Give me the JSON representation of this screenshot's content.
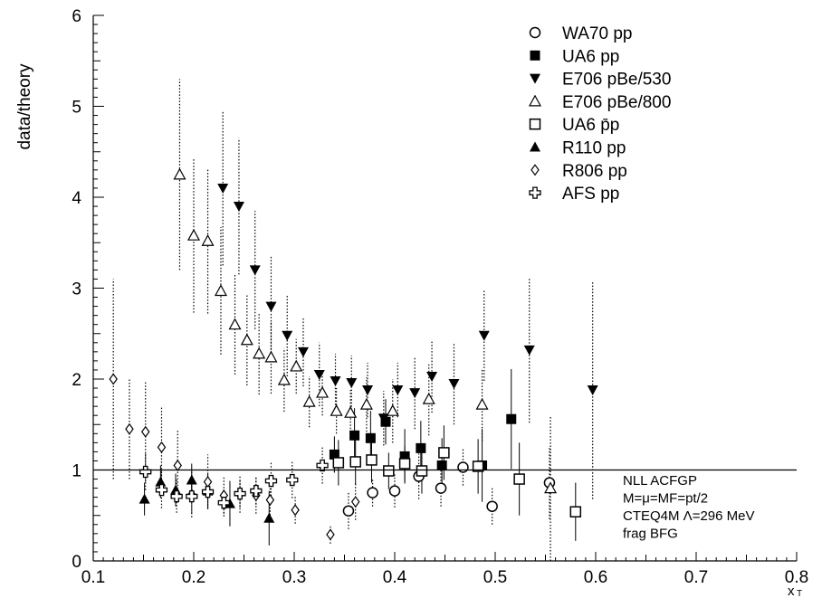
{
  "chart_data": {
    "type": "scatter",
    "ylabel": "data/theory",
    "xlabel": "x",
    "xlabel_subscript": "T",
    "xlim": [
      0.1,
      0.8
    ],
    "ylim": [
      0,
      6
    ],
    "x_ticks": [
      "0.1",
      "0.2",
      "0.3",
      "0.4",
      "0.5",
      "0.6",
      "0.7",
      "0.8"
    ],
    "y_ticks": [
      "0",
      "1",
      "2",
      "3",
      "4",
      "5",
      "6"
    ],
    "reference_line": 1,
    "grid": false,
    "legend_position": "top-right",
    "annotation": [
      "NLL ACFGP",
      "M=μ=MF=pt/2",
      "CTEQ4M Λ=296 MeV",
      "frag  BFG"
    ],
    "series": [
      {
        "name": "WA70 pp",
        "marker": "circle-open",
        "err_style": "dotted",
        "points": [
          [
            0.354,
            0.55,
            0.2
          ],
          [
            0.378,
            0.75,
            0.15
          ],
          [
            0.4,
            0.77,
            0.18
          ],
          [
            0.424,
            0.93,
            0.25
          ],
          [
            0.446,
            0.8,
            0.2
          ],
          [
            0.468,
            1.03,
            0.2
          ],
          [
            0.497,
            0.6,
            0.2
          ],
          [
            0.554,
            0.86,
            0.4
          ]
        ]
      },
      {
        "name": "UA6 pp",
        "marker": "square-filled",
        "err_style": "solid",
        "points": [
          [
            0.34,
            1.17,
            0.2
          ],
          [
            0.36,
            1.38,
            0.3
          ],
          [
            0.376,
            1.35,
            0.3
          ],
          [
            0.391,
            1.53,
            0.25
          ],
          [
            0.41,
            1.15,
            0.3
          ],
          [
            0.426,
            1.24,
            0.3
          ],
          [
            0.447,
            1.05,
            0.3
          ],
          [
            0.487,
            1.05,
            0.4
          ],
          [
            0.516,
            1.56,
            0.55
          ]
        ]
      },
      {
        "name": "E706 pBe/530",
        "marker": "triangle-down-filled",
        "err_style": "dotted",
        "points": [
          [
            0.229,
            4.1,
            0.85
          ],
          [
            0.245,
            3.9,
            0.75
          ],
          [
            0.261,
            3.2,
            0.65
          ],
          [
            0.277,
            2.8,
            0.55
          ],
          [
            0.293,
            2.48,
            0.45
          ],
          [
            0.309,
            2.3,
            0.38
          ],
          [
            0.325,
            2.05,
            0.35
          ],
          [
            0.341,
            1.98,
            0.3
          ],
          [
            0.357,
            1.96,
            0.3
          ],
          [
            0.373,
            1.88,
            0.3
          ],
          [
            0.389,
            1.57,
            0.3
          ],
          [
            0.403,
            1.88,
            0.3
          ],
          [
            0.42,
            1.85,
            0.4
          ],
          [
            0.437,
            2.03,
            0.4
          ],
          [
            0.459,
            1.95,
            0.45
          ],
          [
            0.489,
            2.48,
            0.5
          ],
          [
            0.534,
            2.32,
            0.8
          ],
          [
            0.597,
            1.88,
            1.2
          ]
        ]
      },
      {
        "name": "E706 pBe/800",
        "marker": "triangle-up-open",
        "err_style": "dotted",
        "points": [
          [
            0.186,
            4.25,
            1.05
          ],
          [
            0.2,
            3.58,
            0.85
          ],
          [
            0.214,
            3.52,
            0.8
          ],
          [
            0.227,
            2.97,
            0.7
          ],
          [
            0.241,
            2.6,
            0.55
          ],
          [
            0.253,
            2.43,
            0.5
          ],
          [
            0.265,
            2.28,
            0.45
          ],
          [
            0.277,
            2.24,
            0.4
          ],
          [
            0.29,
            1.99,
            0.35
          ],
          [
            0.302,
            2.14,
            0.3
          ],
          [
            0.315,
            1.75,
            0.28
          ],
          [
            0.328,
            1.85,
            0.25
          ],
          [
            0.342,
            1.65,
            0.25
          ],
          [
            0.356,
            1.63,
            0.25
          ],
          [
            0.372,
            1.72,
            0.3
          ],
          [
            0.398,
            1.65,
            0.35
          ],
          [
            0.434,
            1.78,
            0.4
          ],
          [
            0.487,
            1.72,
            0.4
          ],
          [
            0.555,
            0.8,
            0.8
          ]
        ]
      },
      {
        "name": "UA6 p̄p",
        "marker": "square-open",
        "err_style": "solid",
        "points": [
          [
            0.344,
            1.08,
            0.25
          ],
          [
            0.361,
            1.09,
            0.25
          ],
          [
            0.377,
            1.11,
            0.25
          ],
          [
            0.394,
            0.99,
            0.2
          ],
          [
            0.41,
            1.07,
            0.2
          ],
          [
            0.427,
            0.99,
            0.25
          ],
          [
            0.449,
            1.19,
            0.3
          ],
          [
            0.483,
            1.04,
            0.3
          ],
          [
            0.524,
            0.9,
            0.4
          ],
          [
            0.58,
            0.54,
            0.32
          ]
        ]
      },
      {
        "name": "R110 pp",
        "marker": "triangle-up-filled",
        "err_style": "solid",
        "points": [
          [
            0.151,
            0.68,
            0.18
          ],
          [
            0.167,
            0.87,
            0.18
          ],
          [
            0.182,
            0.78,
            0.18
          ],
          [
            0.198,
            0.89,
            0.18
          ],
          [
            0.214,
            0.77,
            0.2
          ],
          [
            0.236,
            0.63,
            0.25
          ],
          [
            0.275,
            0.47,
            0.3
          ]
        ]
      },
      {
        "name": "R806 pp",
        "marker": "diamond-open",
        "err_style": "dotted",
        "points": [
          [
            0.12,
            2.0,
            1.1
          ],
          [
            0.136,
            1.45,
            0.55
          ],
          [
            0.152,
            1.42,
            0.55
          ],
          [
            0.168,
            1.25,
            0.45
          ],
          [
            0.184,
            1.05,
            0.4
          ],
          [
            0.198,
            0.73,
            0.25
          ],
          [
            0.214,
            0.87,
            0.3
          ],
          [
            0.23,
            0.72,
            0.2
          ],
          [
            0.246,
            0.73,
            0.2
          ],
          [
            0.262,
            0.72,
            0.2
          ],
          [
            0.276,
            0.67,
            0.2
          ],
          [
            0.301,
            0.56,
            0.15
          ],
          [
            0.336,
            0.29,
            0.1
          ],
          [
            0.361,
            0.65,
            0.2
          ]
        ]
      },
      {
        "name": "AFS pp",
        "marker": "cross-open",
        "err_style": "dotted",
        "points": [
          [
            0.152,
            0.98,
            0.2
          ],
          [
            0.168,
            0.78,
            0.2
          ],
          [
            0.183,
            0.71,
            0.18
          ],
          [
            0.198,
            0.71,
            0.18
          ],
          [
            0.214,
            0.76,
            0.18
          ],
          [
            0.23,
            0.64,
            0.15
          ],
          [
            0.246,
            0.74,
            0.15
          ],
          [
            0.262,
            0.77,
            0.15
          ],
          [
            0.277,
            0.88,
            0.2
          ],
          [
            0.298,
            0.89,
            0.2
          ],
          [
            0.328,
            1.05,
            0.2
          ]
        ]
      }
    ]
  }
}
